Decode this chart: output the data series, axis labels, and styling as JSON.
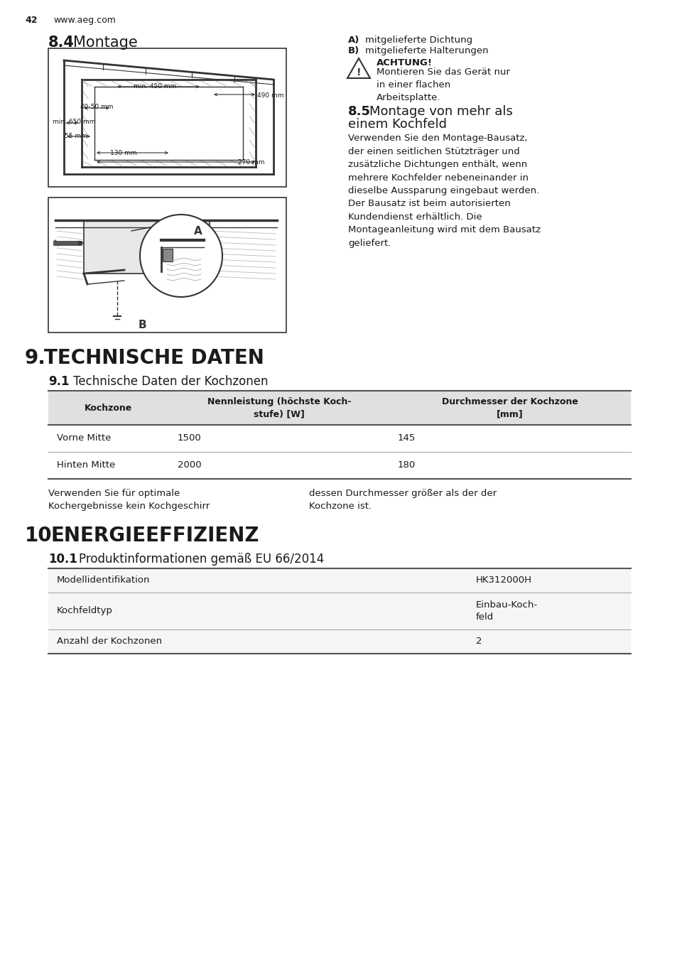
{
  "page_number": "42",
  "website": "www.aeg.com",
  "bg_color": "#ffffff",
  "section_84_title": "8.4 Montage",
  "section_9_title": "9. TECHNISCHE DATEN",
  "section_91_title": "9.1 Technische Daten der Kochzonen",
  "section_10_title": "10. ENERGIEEFFIZIENZ",
  "section_101_title": "10.1 Produktinformationen gemäß EU 66/2014",
  "achtung_title": "ACHTUNG!",
  "achtung_text": "Montieren Sie das Gerät nur\nin einer flachen\nArbeitsplatte.",
  "section_85_line1": "8.5 Montage von mehr als",
  "section_85_line2": "einem Kochfeld",
  "section_85_text": "Verwenden Sie den Montage-Bausatz,\nder einen seitlichen Stützträger und\nzusätzliche Dichtungen enthält, wenn\nmehrere Kochfelder nebeneinander in\ndieselbe Aussparung eingebaut werden.\nDer Bausatz ist beim autorisierten\nKundendienst erhältlich. Die\nMontageanleitung wird mit dem Bausatz\ngeliefert.",
  "note_text_left": "Verwenden Sie für optimale\nKochergebnisse kein Kochgeschirr",
  "note_text_right": "dessen Durchmesser größer als der der\nKochzone ist.",
  "table1_header": [
    "Kochzone",
    "Nennleistung (höchste Koch-\nstufe) [W]",
    "Durchmesser der Kochzone\n[mm]"
  ],
  "table1_rows": [
    [
      "Vorne Mitte",
      "1500",
      "145"
    ],
    [
      "Hinten Mitte",
      "2000",
      "180"
    ]
  ],
  "table2_rows": [
    [
      "Modellidentifikation",
      "HK312000H"
    ],
    [
      "Kochfeldtyp",
      "Einbau-Koch-\nfeld"
    ],
    [
      "Anzahl der Kochzonen",
      "2"
    ]
  ],
  "table_header_bg": "#e0e0e0",
  "table_row_bg": "#f5f5f5",
  "table_border_dark": "#555555",
  "table_border_light": "#aaaaaa",
  "font_color": "#1a1a1a"
}
